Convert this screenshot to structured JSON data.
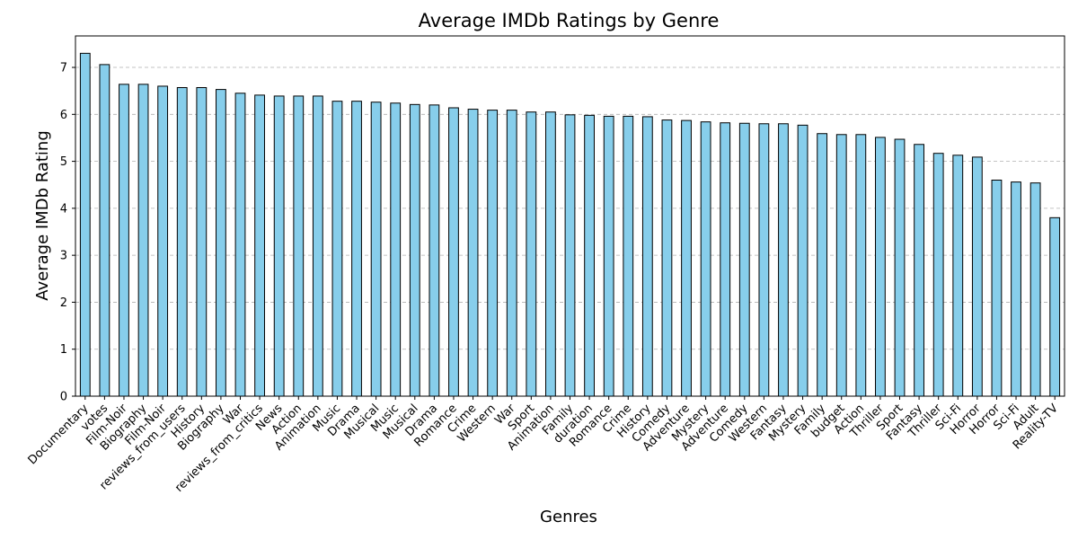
{
  "chart_data": {
    "type": "bar",
    "title": "Average IMDb Ratings by Genre",
    "xlabel": "Genres",
    "ylabel": "Average IMDb Rating",
    "ylim": [
      0,
      7.67
    ],
    "yticks": [
      "0",
      "1",
      "2",
      "3",
      "4",
      "5",
      "6",
      "7"
    ],
    "grid": "y-dashed",
    "bar_color": "#87ceeb",
    "edge_color": "#000000",
    "grid_color": "#b0b0b0",
    "categories": [
      "Documentary",
      "votes",
      "Film-Noir",
      "Biography",
      "Film-Noir",
      "reviews_from_users",
      "History",
      "Biography",
      "War",
      "reviews_from_critics",
      "News",
      "Action",
      "Animation",
      "Music",
      "Drama",
      "Musical",
      "Music",
      "Musical",
      "Drama",
      "Romance",
      "Crime",
      "Western",
      "War",
      "Sport",
      "Animation",
      "Family",
      "duration",
      "Romance",
      "Crime",
      "History",
      "Comedy",
      "Adventure",
      "Mystery",
      "Adventure",
      "Comedy",
      "Western",
      "Fantasy",
      "Mystery",
      "Family",
      "budget",
      "Action",
      "Thriller",
      "Sport",
      "Fantasy",
      "Thriller",
      "Sci-Fi",
      "Horror",
      "Horror",
      "Sci-Fi",
      "Adult",
      "Reality-TV"
    ],
    "values": [
      7.3,
      7.06,
      6.64,
      6.64,
      6.6,
      6.57,
      6.57,
      6.53,
      6.45,
      6.41,
      6.39,
      6.39,
      6.39,
      6.28,
      6.28,
      6.26,
      6.24,
      6.21,
      6.2,
      6.14,
      6.11,
      6.09,
      6.09,
      6.05,
      6.05,
      5.99,
      5.98,
      5.96,
      5.96,
      5.95,
      5.88,
      5.87,
      5.84,
      5.82,
      5.81,
      5.8,
      5.8,
      5.77,
      5.59,
      5.57,
      5.57,
      5.51,
      5.47,
      5.36,
      5.17,
      5.13,
      5.09,
      4.6,
      4.56,
      4.54,
      3.8
    ]
  }
}
